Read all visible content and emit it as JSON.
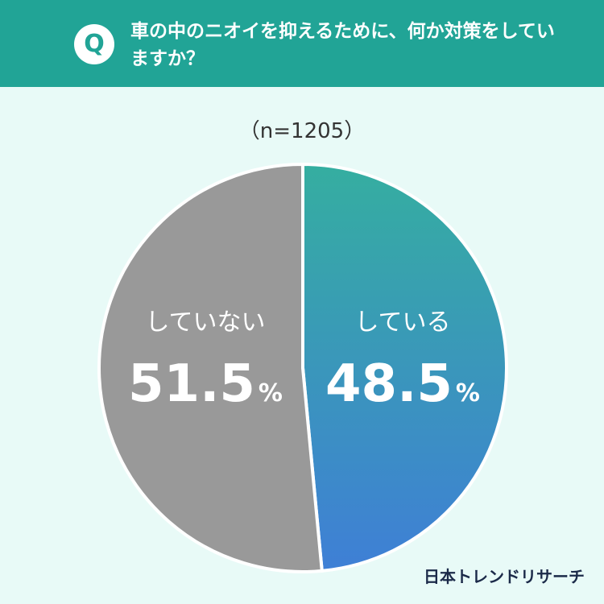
{
  "header": {
    "badge": "Q",
    "question": "車の中のニオイを抑えるために、何か対策をしていますか？"
  },
  "sample_size_label": "（n=1205）",
  "brand": "日本トレンドリサーチ",
  "chart_data": {
    "type": "pie",
    "categories": [
      "している",
      "していない"
    ],
    "values": [
      48.5,
      51.5
    ],
    "value_labels": [
      "48.5",
      "51.5"
    ],
    "unit": "%",
    "colors": [
      "#3aa6a0",
      "#999999"
    ]
  }
}
